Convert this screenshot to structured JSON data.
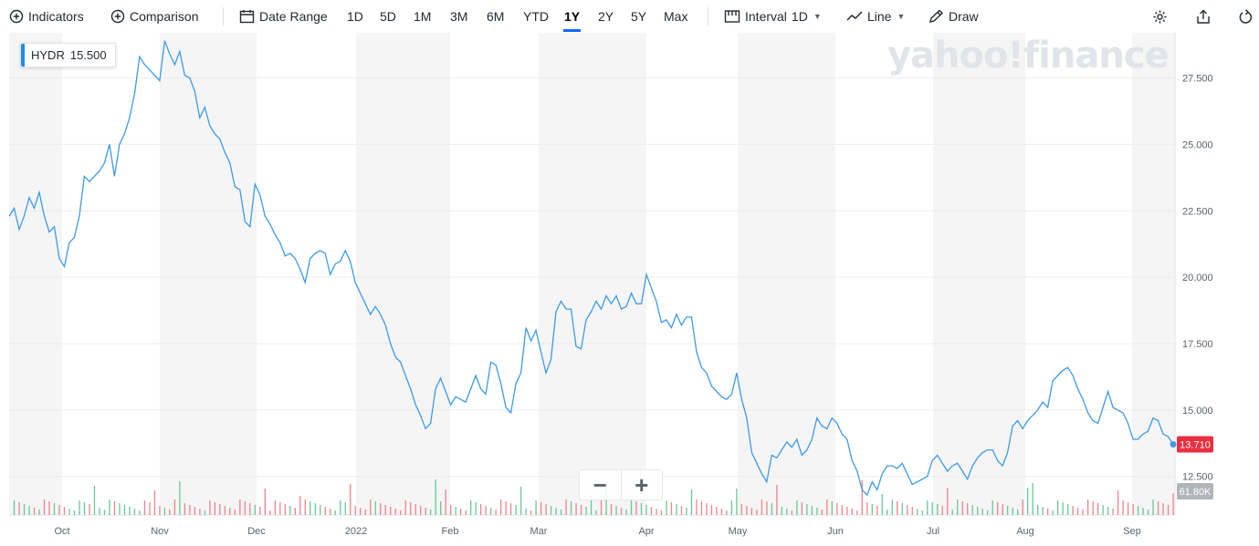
{
  "toolbar": {
    "indicators": "Indicators",
    "comparison": "Comparison",
    "date_range": "Date Range",
    "ranges": [
      "1D",
      "5D",
      "1M",
      "3M",
      "6M",
      "YTD",
      "1Y",
      "2Y",
      "5Y",
      "Max"
    ],
    "active_range": "1Y",
    "interval_label": "Interval",
    "interval_value": "1D",
    "chart_type": "Line",
    "draw": "Draw"
  },
  "ticker_label": {
    "symbol": "HYDR",
    "value": "15.500"
  },
  "watermark": "yahoo!finance",
  "zoom": {
    "minus": "−",
    "plus": "+"
  },
  "colors": {
    "line": "#3d9ae9",
    "up_volume": "#4fbf87",
    "down_volume": "#f06d7a",
    "last_price_bg": "#eb2f3f",
    "volume_bg": "#b0b5ba",
    "band": "#f5f5f5",
    "accent": "#0f69ff"
  },
  "chart_data": {
    "type": "line",
    "title": "",
    "xlabel": "",
    "ylabel": "",
    "ylim": [
      11.05,
      29.2
    ],
    "y_ticks": [
      "27.500",
      "25.000",
      "22.500",
      "20.000",
      "17.500",
      "15.000",
      "12.500"
    ],
    "x_ticks": [
      "Oct",
      "Nov",
      "Dec",
      "2022",
      "Feb",
      "Mar",
      "Apr",
      "May",
      "Jun",
      "Jul",
      "Aug",
      "Sep"
    ],
    "last_price": "13.710",
    "last_volume": "61.80K",
    "grid": true,
    "legend": "none",
    "series": [
      {
        "values": [
          22.3,
          22.6,
          21.8,
          22.3,
          23.0,
          22.6,
          23.2,
          22.3,
          21.7,
          21.9,
          20.7,
          20.4,
          21.3,
          21.5,
          22.3,
          23.8,
          23.6,
          23.8,
          24.0,
          24.3,
          25.0,
          23.8,
          25.0,
          25.4,
          26.0,
          26.9,
          28.3,
          28.0,
          27.8,
          27.6,
          27.4,
          28.9,
          28.4,
          28.0,
          28.5,
          27.6,
          27.5,
          27.0,
          26.0,
          26.4,
          25.7,
          25.4,
          25.2,
          24.7,
          24.3,
          23.4,
          23.3,
          22.1,
          21.9,
          23.5,
          23.1,
          22.3,
          22.0,
          21.6,
          21.3,
          20.8,
          20.9,
          20.7,
          20.3,
          19.8,
          20.7,
          20.9,
          21.0,
          20.9,
          20.1,
          20.5,
          20.6,
          21.0,
          20.6,
          19.8,
          19.4,
          19.0,
          18.6,
          18.9,
          18.6,
          18.2,
          17.5,
          17.0,
          16.8,
          16.3,
          15.8,
          15.2,
          14.8,
          14.3,
          14.5,
          15.8,
          16.2,
          15.7,
          15.2,
          15.5,
          15.4,
          15.3,
          15.8,
          16.3,
          15.8,
          15.6,
          16.8,
          16.7,
          16.0,
          15.1,
          14.9,
          16.0,
          16.4,
          18.1,
          17.6,
          18.0,
          17.2,
          16.4,
          16.9,
          18.7,
          19.1,
          18.8,
          18.8,
          17.4,
          17.3,
          18.4,
          18.7,
          19.1,
          18.8,
          19.3,
          19.0,
          19.3,
          18.8,
          18.9,
          19.4,
          19.0,
          19.0,
          20.1,
          19.6,
          19.1,
          18.3,
          18.4,
          18.1,
          18.6,
          18.2,
          18.5,
          18.5,
          17.2,
          16.6,
          16.4,
          15.9,
          15.7,
          15.5,
          15.4,
          15.6,
          16.4,
          15.4,
          14.7,
          13.4,
          13.0,
          12.6,
          12.3,
          13.3,
          13.2,
          13.5,
          13.8,
          13.6,
          13.9,
          13.3,
          13.5,
          13.9,
          14.7,
          14.4,
          14.3,
          14.7,
          14.5,
          14.1,
          13.9,
          13.1,
          12.7,
          12.0,
          11.8,
          12.3,
          12.0,
          12.6,
          12.9,
          12.9,
          12.8,
          13.0,
          12.6,
          12.2,
          12.3,
          12.4,
          12.5,
          13.1,
          13.3,
          13.0,
          12.7,
          12.9,
          13.0,
          12.7,
          12.4,
          12.9,
          13.2,
          13.4,
          13.5,
          13.5,
          13.1,
          12.9,
          13.4,
          14.4,
          14.6,
          14.3,
          14.6,
          14.8,
          15.0,
          15.3,
          15.1,
          16.1,
          16.3,
          16.5,
          16.6,
          16.3,
          15.8,
          15.4,
          14.9,
          14.6,
          14.5,
          15.1,
          15.7,
          15.1,
          15.0,
          14.9,
          14.5,
          13.9,
          13.9,
          14.1,
          14.2,
          14.7,
          14.6,
          14.1,
          14.0,
          13.71
        ]
      }
    ]
  }
}
